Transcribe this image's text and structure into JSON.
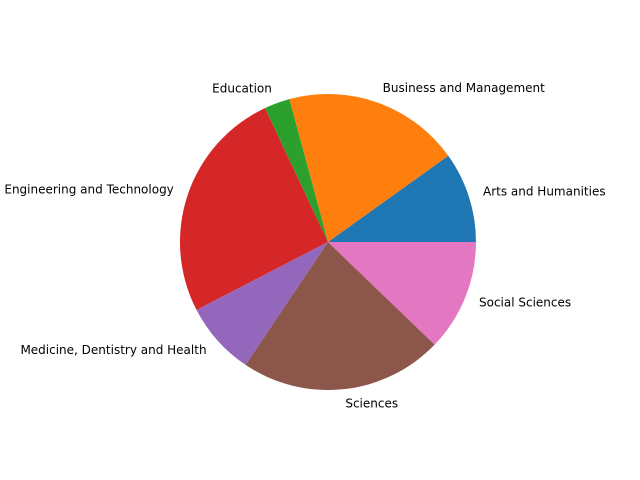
{
  "chart_data": {
    "type": "pie",
    "title": "",
    "start_angle_deg": 0,
    "direction": "counterclockwise",
    "slices": [
      {
        "label": "Arts and Humanities",
        "value": 9.9,
        "color": "#1f77b4"
      },
      {
        "label": "Business and Management",
        "value": 19.3,
        "color": "#ff7f0e"
      },
      {
        "label": "Education",
        "value": 2.8,
        "color": "#2ca02c"
      },
      {
        "label": "Engineering and Technology",
        "value": 25.6,
        "color": "#d62728"
      },
      {
        "label": "Medicine, Dentistry and Health",
        "value": 8.0,
        "color": "#9467bd"
      },
      {
        "label": "Sciences",
        "value": 22.2,
        "color": "#8c564b"
      },
      {
        "label": "Social Sciences",
        "value": 12.2,
        "color": "#e377c2"
      }
    ]
  }
}
